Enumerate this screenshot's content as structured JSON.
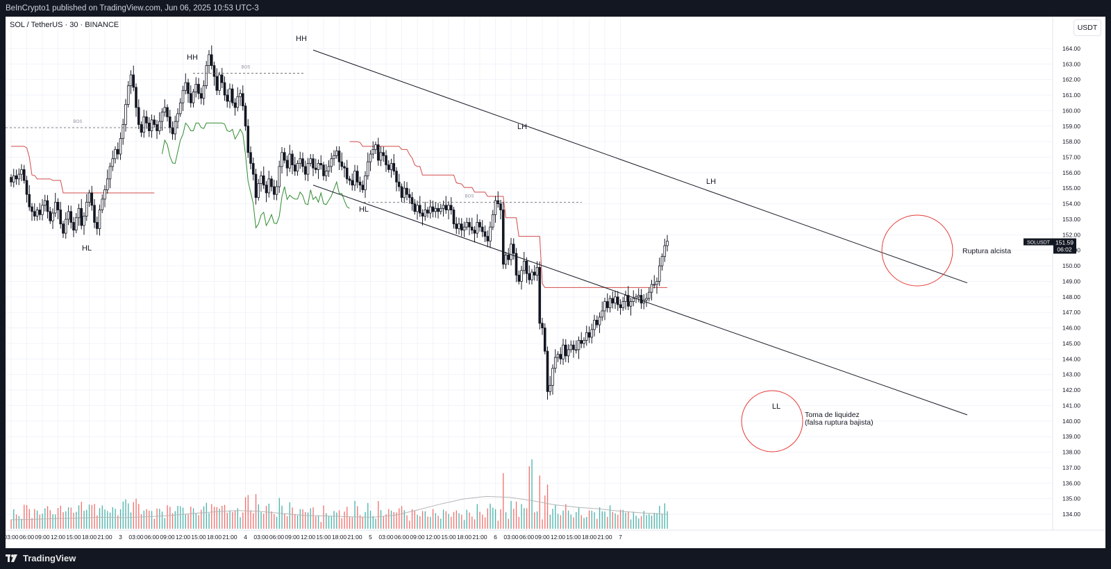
{
  "header": {
    "publisher_line": "BeInCrypto1 published on TradingView.com, Jun 06, 2025 10:53 UTC-3"
  },
  "chart": {
    "symbol_line": "SOL / TetherUS · 30 · BINANCE",
    "currency_button": "USDT",
    "price_badge": {
      "ticker": "SOLUSDT",
      "price": "151.59",
      "countdown": "06:02",
      "value": 151.59
    }
  },
  "footer": {
    "brand": "TradingView"
  },
  "chart_data": {
    "type": "candlestick",
    "y_axis": {
      "min": 133.6,
      "max": 164.8,
      "ticks": [
        134,
        135,
        136,
        137,
        138,
        139,
        140,
        141,
        142,
        143,
        144,
        145,
        146,
        147,
        148,
        149,
        150,
        151,
        152,
        153,
        154,
        155,
        156,
        157,
        158,
        159,
        160,
        161,
        162,
        163,
        164
      ],
      "tick_labels": [
        "134.00",
        "135.00",
        "136.00",
        "137.00",
        "138.00",
        "139.00",
        "140.00",
        "141.00",
        "142.00",
        "143.00",
        "144.00",
        "145.00",
        "146.00",
        "147.00",
        "148.00",
        "149.00",
        "150.00",
        "151.00",
        "152.00",
        "153.00",
        "154.00",
        "155.00",
        "156.00",
        "157.00",
        "158.00",
        "159.00",
        "160.00",
        "161.00",
        "162.00",
        "163.00",
        "164.00"
      ]
    },
    "x_axis": {
      "bars_per_day": 48,
      "first_label_bar": 0,
      "labels": [
        "03:00",
        "06:00",
        "09:00",
        "12:00",
        "15:00",
        "18:00",
        "21:00",
        "3",
        "03:00",
        "06:00",
        "09:00",
        "12:00",
        "15:00",
        "18:00",
        "21:00",
        "4",
        "03:00",
        "06:00",
        "09:00",
        "12:00",
        "15:00",
        "18:00",
        "21:00",
        "5",
        "03:00",
        "06:00",
        "09:00",
        "12:00",
        "15:00",
        "18:00",
        "21:00",
        "6",
        "03:00",
        "06:00",
        "09:00",
        "12:00",
        "15:00",
        "18:00",
        "21:00",
        "7"
      ]
    },
    "bars": {
      "open_start": 155.7,
      "closes": [
        155.4,
        155.8,
        155.6,
        155.9,
        156.2,
        155.5,
        154.6,
        153.8,
        153.5,
        153.2,
        153.6,
        153.3,
        153.9,
        154.2,
        153.5,
        152.9,
        153.4,
        154.1,
        153.6,
        152.7,
        152.1,
        153.0,
        153.5,
        152.8,
        152.3,
        153.1,
        153.7,
        152.6,
        153.2,
        154.1,
        154.7,
        153.9,
        152.8,
        152.4,
        153.6,
        154.3,
        154.9,
        155.6,
        156.4,
        156.9,
        157.5,
        157.2,
        158.2,
        159.1,
        160.4,
        161.6,
        162.3,
        161.5,
        160.2,
        159.1,
        158.6,
        159.6,
        159.2,
        158.7,
        159.4,
        159.1,
        158.7,
        159.3,
        159.9,
        160.2,
        159.6,
        158.9,
        158.5,
        159.3,
        159.8,
        160.5,
        161.3,
        161.8,
        161.1,
        160.5,
        161.2,
        161.7,
        161.1,
        160.8,
        161.6,
        162.9,
        163.6,
        162.9,
        162.2,
        161.3,
        162.3,
        161.8,
        161.0,
        160.6,
        161.4,
        160.5,
        160.2,
        160.9,
        161.1,
        160.3,
        159.0,
        157.3,
        156.6,
        155.9,
        154.4,
        155.3,
        155.8,
        155.2,
        154.7,
        155.6,
        155.1,
        154.6,
        155.1,
        156.4,
        157.3,
        156.8,
        156.3,
        157.2,
        156.5,
        156.1,
        156.6,
        156.9,
        156.4,
        155.9,
        156.6,
        156.9,
        156.3,
        156.2,
        156.6,
        156.5,
        155.8,
        156.1,
        156.4,
        156.9,
        157.1,
        157.4,
        156.7,
        156.4,
        156.3,
        155.6,
        155.5,
        155.2,
        156.1,
        155.4,
        155.2,
        154.9,
        155.8,
        156.7,
        157.2,
        157.5,
        157.8,
        156.8,
        157.3,
        157.1,
        156.5,
        156.2,
        156.6,
        156.1,
        155.4,
        155.1,
        154.4,
        155.0,
        154.6,
        154.4,
        154.0,
        153.5,
        153.9,
        153.4,
        153.2,
        153.6,
        153.4,
        153.8,
        153.5,
        153.7,
        153.5,
        153.7,
        153.9,
        153.6,
        153.9,
        153.6,
        152.7,
        152.4,
        152.7,
        152.3,
        152.5,
        152.8,
        152.5,
        152.3,
        152.1,
        152.8,
        152.5,
        152.2,
        151.9,
        151.6,
        152.5,
        153.3,
        154.2,
        154.0,
        153.6,
        150.1,
        150.7,
        150.4,
        151.4,
        150.8,
        149.4,
        149.0,
        149.7,
        150.3,
        149.5,
        149.1,
        149.6,
        149.4,
        149.9,
        146.3,
        146.0,
        144.5,
        141.9,
        142.3,
        143.4,
        144.1,
        144.3,
        144.0,
        144.9,
        144.2,
        144.6,
        144.9,
        144.6,
        144.6,
        145.2,
        145.0,
        145.2,
        145.7,
        145.4,
        145.9,
        146.5,
        146.2,
        146.7,
        147.1,
        147.7,
        147.3,
        147.9,
        147.6,
        148.0,
        147.5,
        147.3,
        147.7,
        148.1,
        147.4,
        147.7,
        147.9,
        148.0,
        148.1,
        147.6,
        147.8,
        147.9,
        148.3,
        148.8,
        148.8,
        149.0,
        150.0,
        150.6,
        151.3,
        151.59
      ],
      "wicks": [
        0.4,
        0.6
      ]
    },
    "volume": {
      "baseline_line_values": [
        0.05,
        0.06,
        0.08,
        0.09,
        0.11,
        0.1,
        0.12,
        0.15,
        0.2,
        0.24,
        0.27,
        0.25,
        0.2,
        0.15,
        0.14,
        0.12,
        0.11,
        0.16,
        0.29,
        0.43,
        0.55,
        0.61,
        0.59,
        0.51,
        0.41,
        0.35,
        0.31,
        0.25,
        0.21,
        0.18
      ]
    },
    "trendlines": {
      "channel_upper": {
        "from": [
          0,
          163.9
        ],
        "to": [
          1,
          148.9
        ],
        "from_label": "HH",
        "note": "descending channel upper line"
      },
      "channel_lower": {
        "from": [
          0,
          155.2
        ],
        "to": [
          1,
          140.4
        ]
      }
    },
    "structure_labels": [
      "HH",
      "HH",
      "HL",
      "HL",
      "LH",
      "LH",
      "LL"
    ],
    "bos_labels": [
      "BOS",
      "BOS",
      "BOS"
    ],
    "annotations": [
      {
        "text_lines": [
          "Toma de liquidez",
          "(falsa ruptura bajista)"
        ]
      },
      {
        "text_lines": [
          "Ruptura alcista"
        ]
      }
    ],
    "overlays": {
      "supertrend_down_color": "#d24a4a",
      "supertrend_up_color": "#2e8b2e",
      "channel_color": "#131722",
      "circle_color": "#e53935",
      "volume_up_color": "#26a69a",
      "volume_down_color": "#ef5350",
      "volume_avg_color": "#b5b5b5"
    },
    "grid": true
  }
}
